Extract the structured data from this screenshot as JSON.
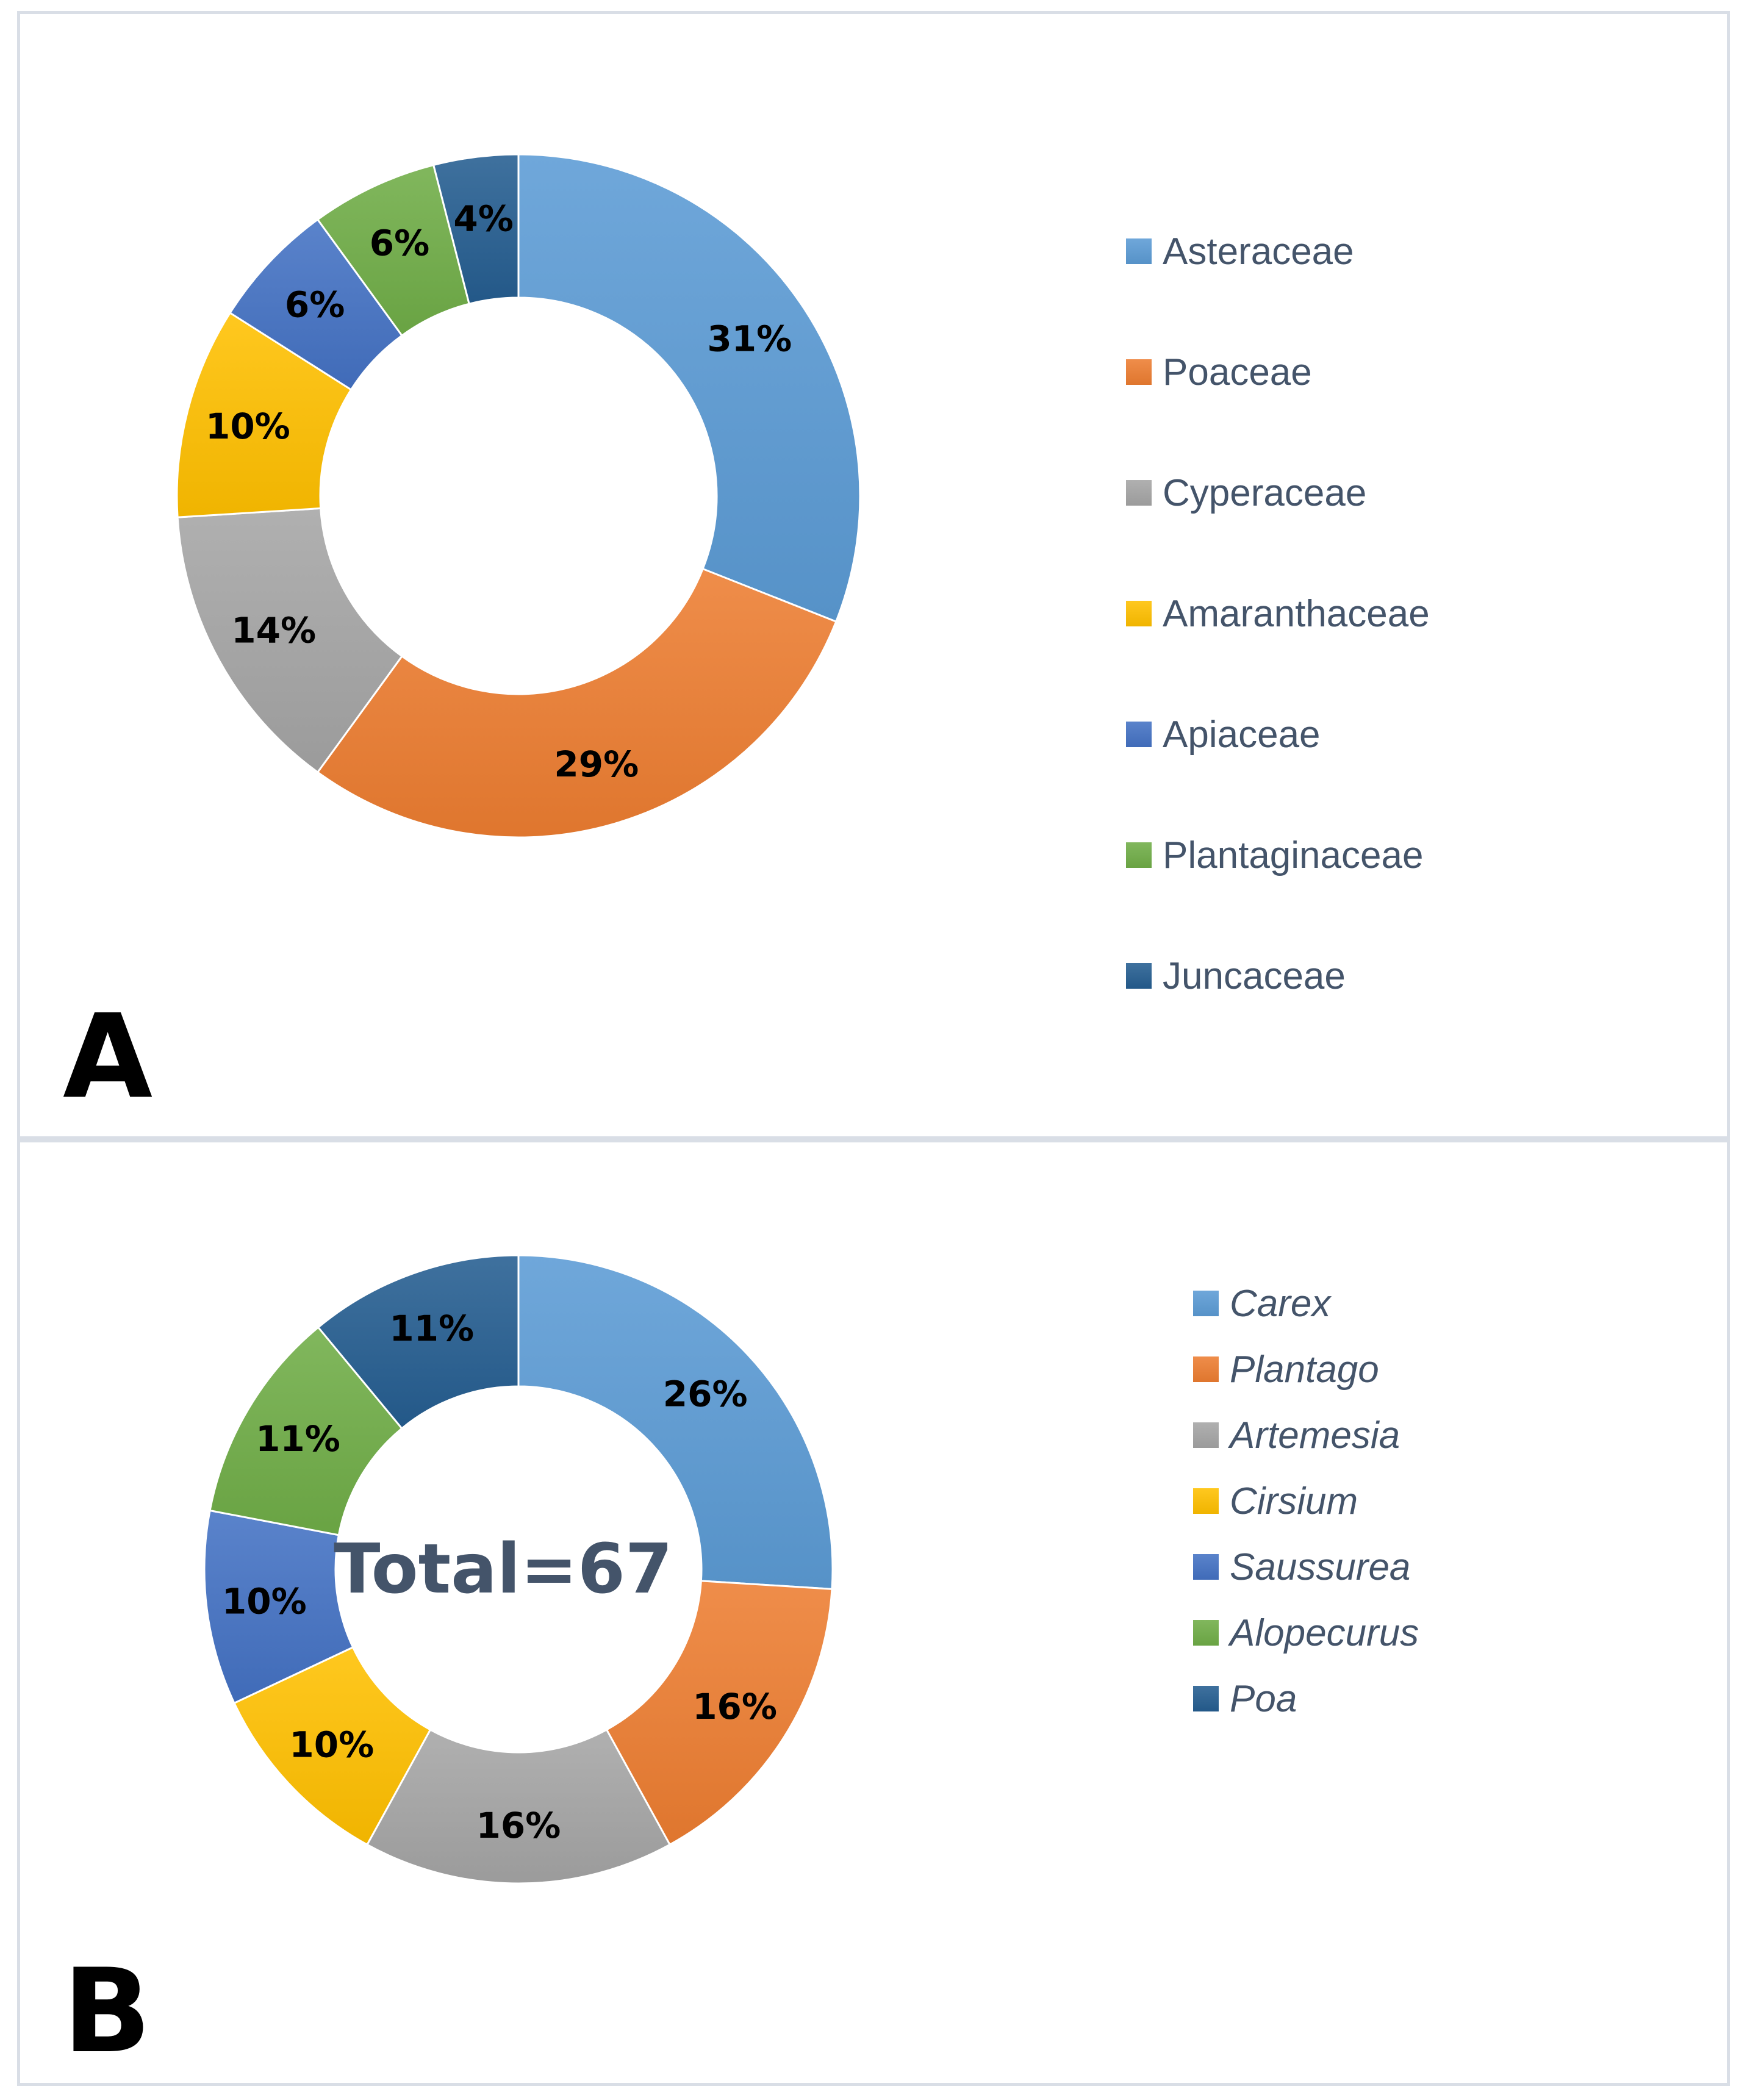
{
  "chart_data": [
    {
      "type": "donut",
      "panel_label": "A",
      "title": "",
      "categories": [
        "Asteraceae",
        "Poaceae",
        "Cyperaceae",
        "Amaranthaceae",
        "Apiaceae",
        "Plantaginaceae",
        "Juncaceae"
      ],
      "values": [
        31,
        29,
        14,
        10,
        6,
        6,
        4
      ],
      "data_labels": [
        "31%",
        "29%",
        "14%",
        "10%",
        "6%",
        "6%",
        "4%"
      ],
      "colors": [
        "#5b9bd5",
        "#ed7d31",
        "#a5a5a5",
        "#ffc000",
        "#4472c4",
        "#70ad47",
        "#255e91"
      ],
      "legend_position": "right",
      "center_text": ""
    },
    {
      "type": "donut",
      "panel_label": "B",
      "title": "",
      "categories": [
        "Carex",
        "Plantago",
        "Artemesia",
        "Cirsium",
        "Saussurea",
        "Alopecurus",
        "Poa"
      ],
      "values": [
        26,
        16,
        16,
        10,
        10,
        11,
        11
      ],
      "data_labels": [
        "26%",
        "16%",
        "16%",
        "10%",
        "10%",
        "11%",
        "11%"
      ],
      "colors": [
        "#5b9bd5",
        "#ed7d31",
        "#a5a5a5",
        "#ffc000",
        "#4472c4",
        "#70ad47",
        "#255e91"
      ],
      "legend_position": "right",
      "center_text": "Total=67"
    }
  ]
}
